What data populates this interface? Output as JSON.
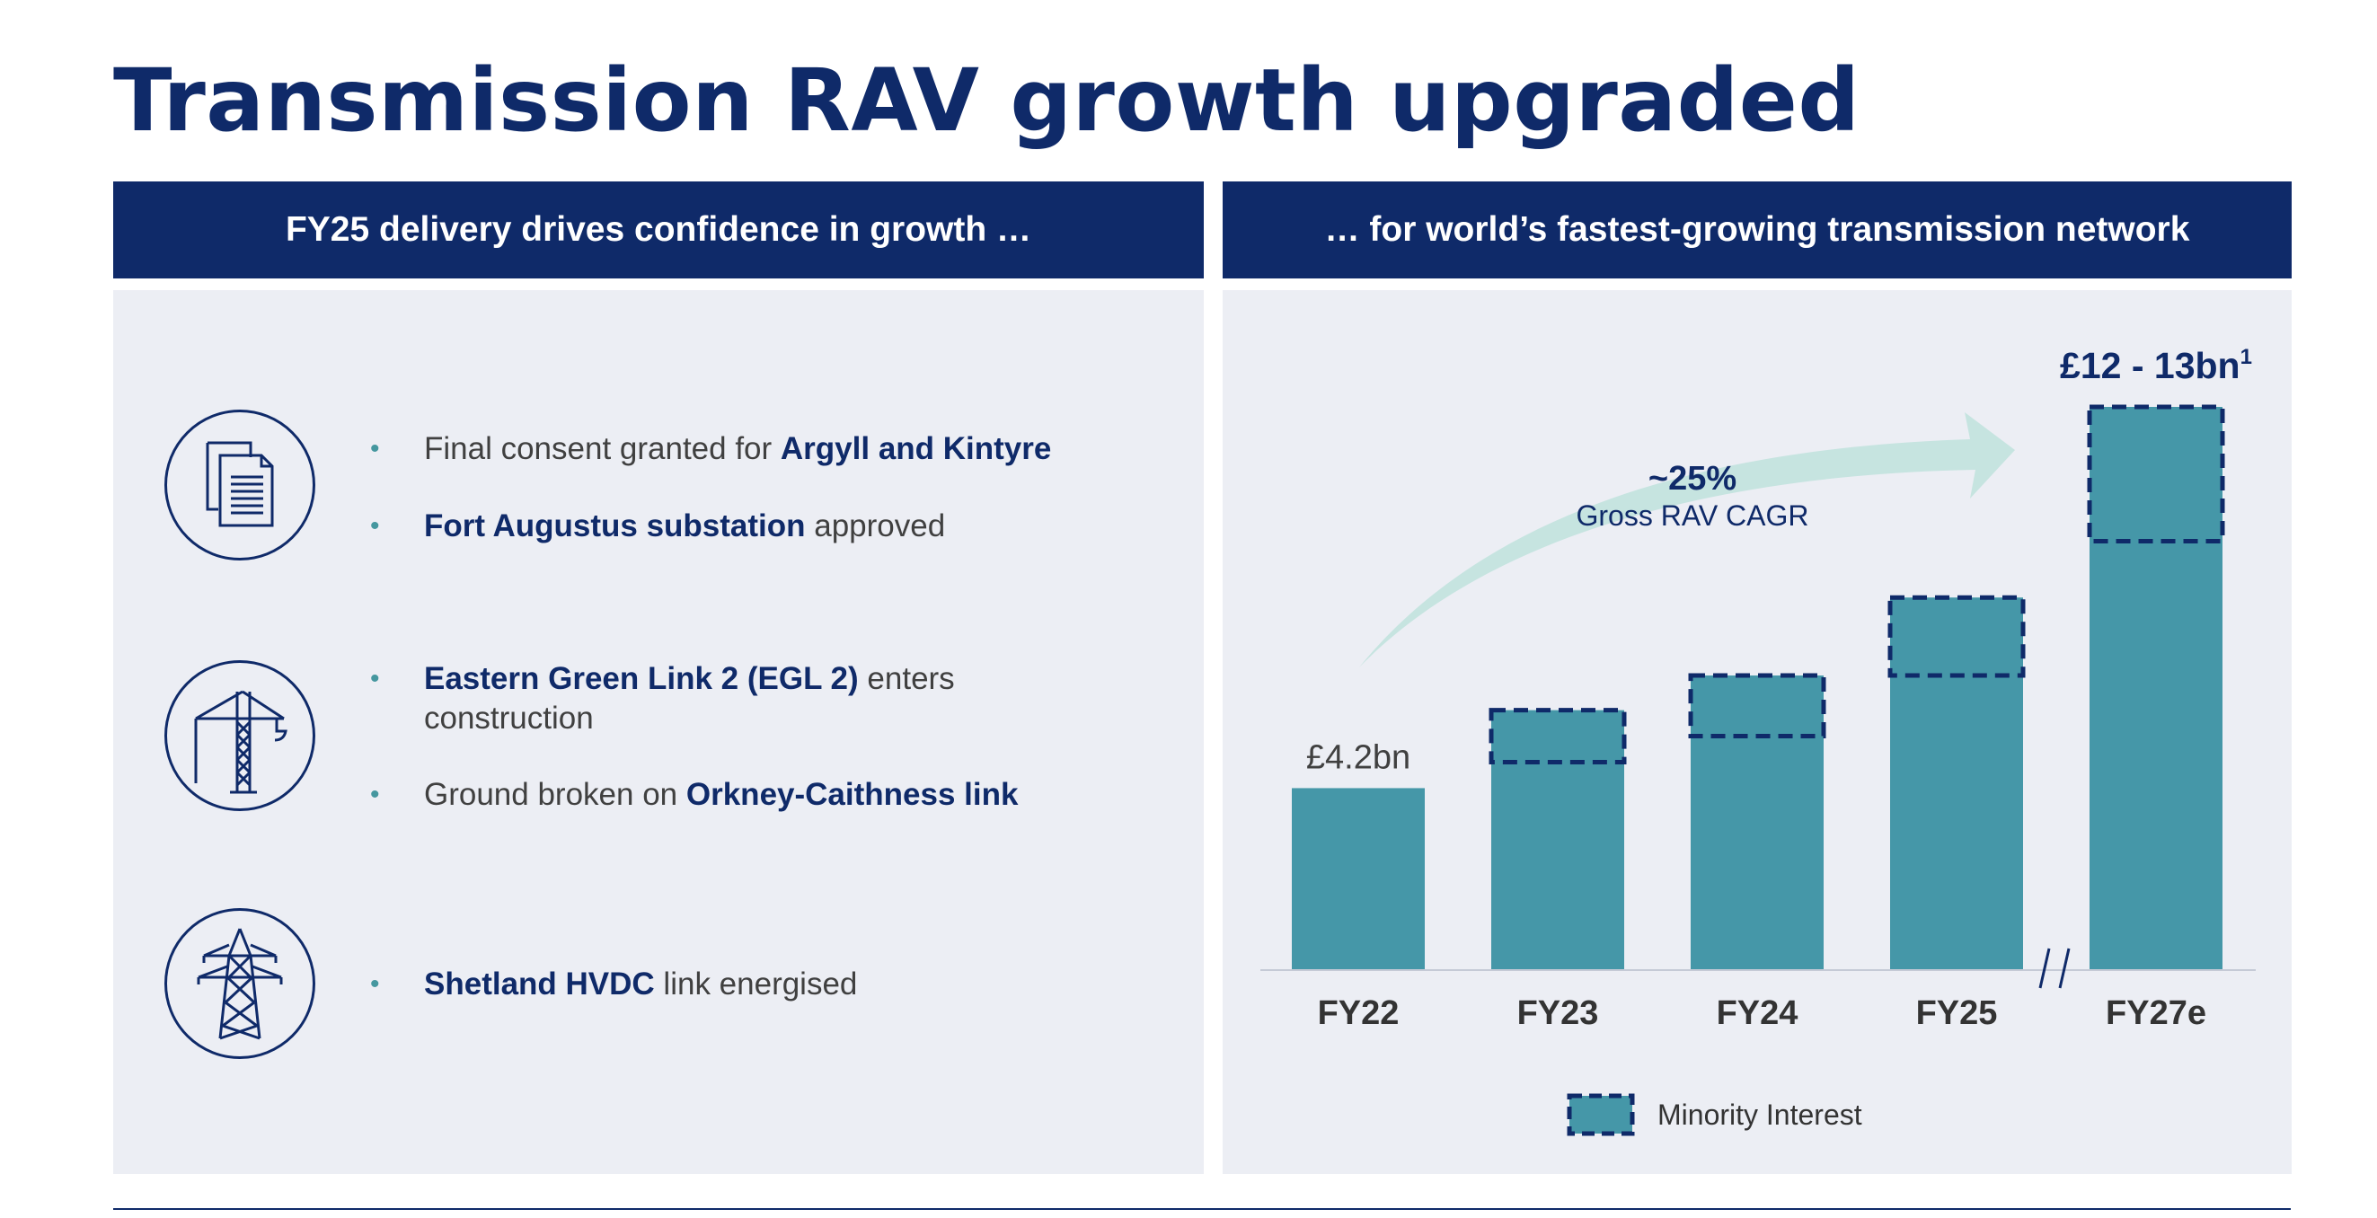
{
  "title": "Transmission RAV growth upgraded",
  "left_panel": {
    "header": "FY25 delivery drives confidence in growth …",
    "groups": [
      {
        "icon": "document-icon",
        "bullets": [
          {
            "pre": "Final consent granted for ",
            "bold": "Argyll and Kintyre",
            "post": ""
          },
          {
            "pre": "",
            "bold": "Fort Augustus substation",
            "post": " approved"
          }
        ]
      },
      {
        "icon": "crane-icon",
        "bullets": [
          {
            "pre": "",
            "bold": "Eastern Green Link 2 (EGL 2)",
            "post": " enters",
            "line2": "construction"
          },
          {
            "pre": "Ground broken on ",
            "bold": "Orkney-Caithness link",
            "post": ""
          }
        ]
      },
      {
        "icon": "pylon-icon",
        "bullets": [
          {
            "pre": "",
            "bold": "Shetland HVDC",
            "post": " link energised"
          }
        ]
      }
    ]
  },
  "right_panel": {
    "header": "… for world’s fastest-growing transmission network"
  },
  "chart_data": {
    "type": "bar",
    "categories": [
      "FY22",
      "FY23",
      "FY24",
      "FY25",
      "FY27e"
    ],
    "series": [
      {
        "values": [
          4.2,
          4.8,
          5.4,
          6.8,
          9.9
        ]
      },
      {
        "name": "Minority Interest",
        "values": [
          0,
          1.2,
          1.4,
          1.8,
          3.1
        ]
      }
    ],
    "ylim": [
      0,
      13
    ],
    "axis_break_before": "FY27e",
    "data_labels": {
      "FY22": "£4.2bn",
      "FY27e": "£12 - 13bn"
    },
    "data_label_superscript": "1",
    "annotation": {
      "value": "~25%",
      "label": "Gross RAV CAGR"
    },
    "legend": {
      "label": "Minority Interest",
      "position": "bottom"
    },
    "colors": {
      "bar": "#4597a8",
      "dash": "#0f2a69",
      "arrow": "#c6e4e0"
    }
  }
}
